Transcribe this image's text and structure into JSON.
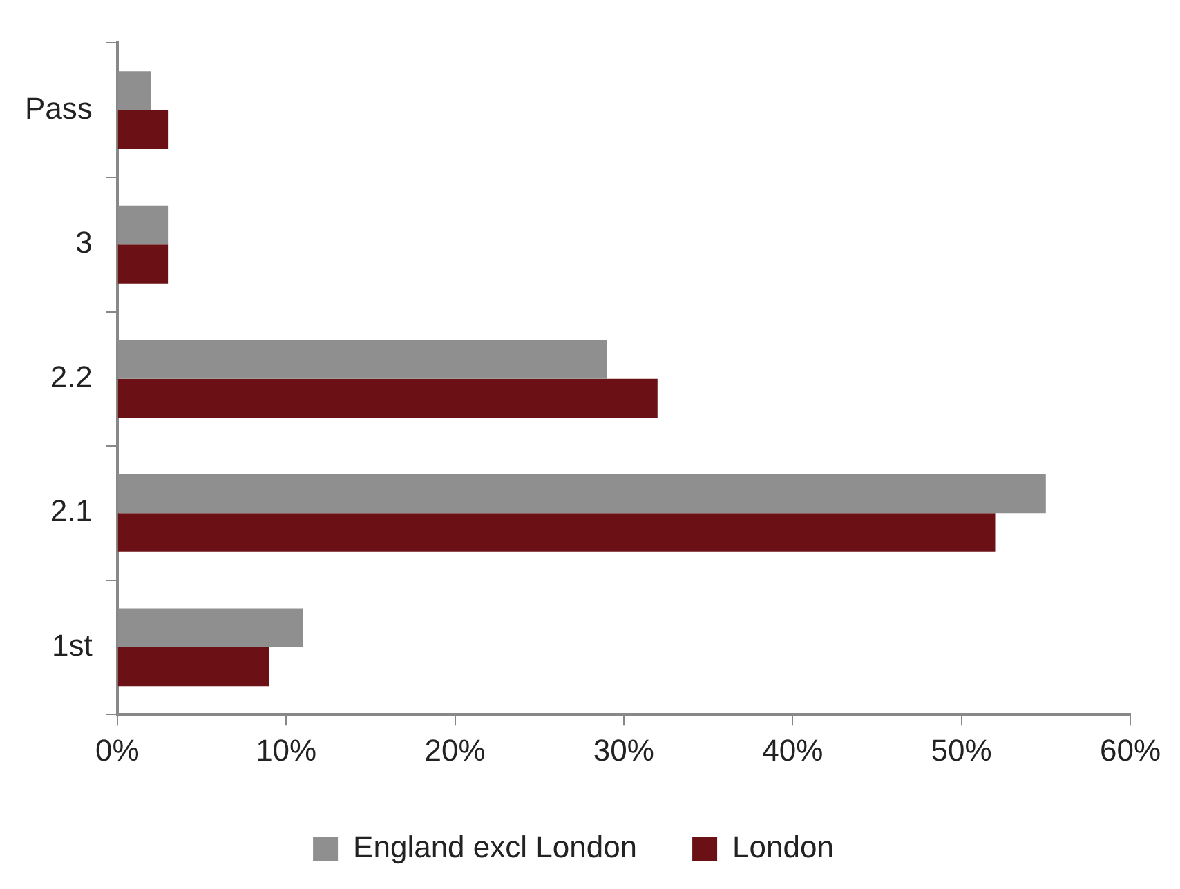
{
  "chart_data": {
    "type": "bar",
    "orientation": "horizontal",
    "categories": [
      "Pass",
      "3",
      "2.2",
      "2.1",
      "1st"
    ],
    "series": [
      {
        "name": "England excl London",
        "color": "#8f8f8f",
        "values": [
          2,
          3,
          29,
          55,
          11
        ]
      },
      {
        "name": "London",
        "color": "#6b1015",
        "values": [
          3,
          3,
          32,
          52,
          9
        ]
      }
    ],
    "xlim": [
      0,
      60
    ],
    "xticks": [
      {
        "value": 0,
        "label": "0%"
      },
      {
        "value": 10,
        "label": "10%"
      },
      {
        "value": 20,
        "label": "20%"
      },
      {
        "value": 30,
        "label": "30%"
      },
      {
        "value": 40,
        "label": "40%"
      },
      {
        "value": 50,
        "label": "50%"
      },
      {
        "value": 60,
        "label": "60%"
      }
    ],
    "grid": false,
    "legend": "bottom"
  }
}
